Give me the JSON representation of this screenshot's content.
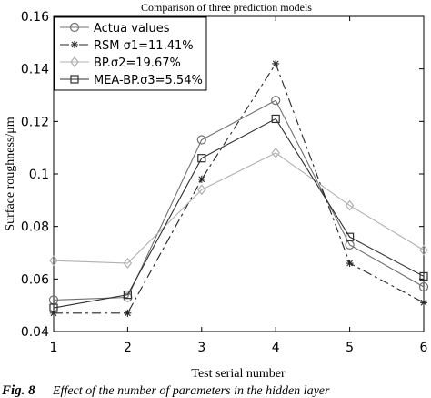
{
  "chart_data": {
    "type": "line",
    "title": "Comparison of three prediction models",
    "xlabel": "Test serial number",
    "ylabel": "Surface roughness/μm",
    "x": [
      1,
      2,
      3,
      4,
      5,
      6
    ],
    "xlim": [
      1,
      6
    ],
    "ylim": [
      0.04,
      0.16
    ],
    "xticks": [
      "1",
      "2",
      "3",
      "4",
      "5",
      "6"
    ],
    "yticks": [
      "0.04",
      "0.06",
      "0.08",
      "0.1",
      "0.12",
      "0.14",
      "0.16"
    ],
    "grid": false,
    "legend_position": "top-left",
    "series": [
      {
        "name": "Actua  values",
        "marker": "circle",
        "color": "#707070",
        "dash": "none",
        "values": [
          0.052,
          0.053,
          0.113,
          0.128,
          0.073,
          0.057
        ]
      },
      {
        "name": "RSM σ1=11.41%",
        "marker": "star",
        "color": "#262626",
        "dash": "10,4,3,4",
        "values": [
          0.047,
          0.047,
          0.098,
          0.142,
          0.066,
          0.051
        ]
      },
      {
        "name": "BP.σ2=19.67%",
        "marker": "diamond",
        "color": "#b0b0b0",
        "dash": "none",
        "values": [
          0.067,
          0.066,
          0.094,
          0.108,
          0.088,
          0.071
        ]
      },
      {
        "name": "MEA-BP.σ3=5.54%",
        "marker": "square",
        "color": "#2e2e2e",
        "dash": "none",
        "values": [
          0.049,
          0.054,
          0.106,
          0.121,
          0.076,
          0.061
        ]
      }
    ]
  },
  "caption": {
    "label": "Fig. 8",
    "text": "Effect of the number of parameters in the hidden layer"
  }
}
